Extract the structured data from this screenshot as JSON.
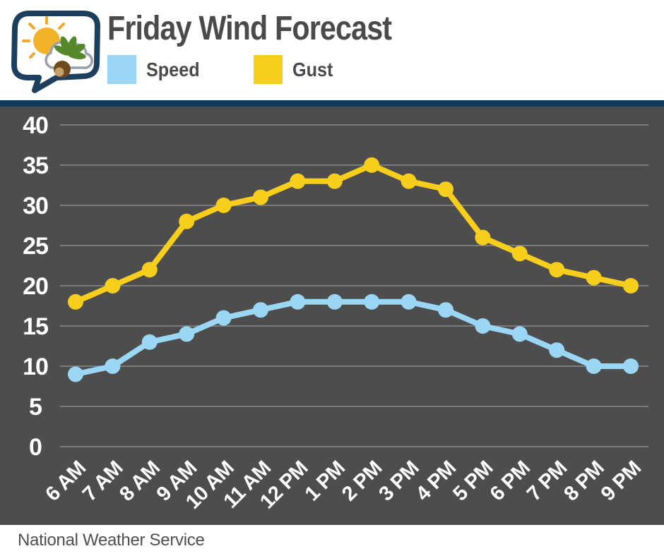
{
  "header": {
    "title": "Friday Wind Forecast",
    "logo_icon": "speech-bubble-sun-cloud-buckeye-logo",
    "legend": [
      {
        "label": "Speed",
        "color": "#9BD7F4"
      },
      {
        "label": "Gust",
        "color": "#F8CE1C"
      }
    ]
  },
  "footer": {
    "source": "National Weather Service"
  },
  "colors": {
    "divider_bar": "#0E3A5C",
    "chart_background": "#4D4D4D",
    "gridline": "#828282",
    "axis_text": "#FFFFFF",
    "heading_text": "#4A4A4A",
    "speed_line": "#9BD7F4",
    "gust_line": "#F8CE1C",
    "logo_navy": "#1D3F5E",
    "sun_yellow": "#F2B32B",
    "leaf_green": "#55882B",
    "nut_brown": "#6F4A21"
  },
  "chart_data": {
    "type": "line",
    "title": "Friday Wind Forecast",
    "xlabel": "",
    "ylabel": "",
    "categories": [
      "6 AM",
      "7 AM",
      "8 AM",
      "9 AM",
      "10 AM",
      "11 AM",
      "12 PM",
      "1 PM",
      "2 PM",
      "3 PM",
      "4 PM",
      "5 PM",
      "6 PM",
      "7 PM",
      "8 PM",
      "9 PM"
    ],
    "series": [
      {
        "name": "Speed",
        "color": "#9BD7F4",
        "values": [
          9,
          10,
          13,
          14,
          16,
          17,
          18,
          18,
          18,
          18,
          17,
          15,
          14,
          12,
          10,
          10
        ]
      },
      {
        "name": "Gust",
        "color": "#F8CE1C",
        "values": [
          18,
          20,
          22,
          28,
          30,
          31,
          33,
          33,
          35,
          33,
          32,
          26,
          24,
          22,
          21,
          20
        ]
      }
    ],
    "ylim": [
      0,
      40
    ],
    "yticks": [
      0,
      5,
      10,
      15,
      20,
      25,
      30,
      35,
      40
    ],
    "grid": true,
    "legend_position": "top",
    "marker": "circle",
    "x_tick_rotation": -45
  }
}
